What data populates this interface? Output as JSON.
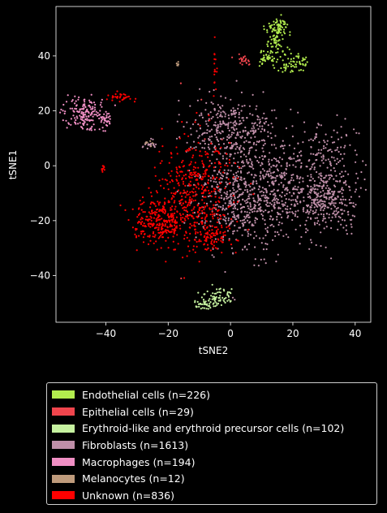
{
  "chart_data": {
    "type": "scatter",
    "title": "",
    "xlabel": "tSNE2",
    "ylabel": "tSNE1",
    "xlim": [
      -56,
      45
    ],
    "ylim": [
      -57,
      58
    ],
    "xticks": [
      -40,
      -20,
      0,
      20,
      40
    ],
    "yticks": [
      -40,
      -20,
      0,
      20,
      40
    ],
    "x_tick_labels": [
      "−40",
      "−20",
      "0",
      "20",
      "40"
    ],
    "y_tick_labels": [
      "−40",
      "−20",
      "0",
      "20",
      "40"
    ],
    "grid": false,
    "legend_position": "below",
    "series": [
      {
        "name": "Endothelial cells (n=226)",
        "color": "#b2ec4e",
        "clusters": [
          {
            "cx": 15,
            "cy": 50,
            "sx": 2,
            "sy": 2,
            "n": 70
          },
          {
            "cx": 15,
            "cy": 43,
            "sx": 1.5,
            "sy": 4,
            "n": 60
          },
          {
            "cx": 12,
            "cy": 39.5,
            "sx": 1.5,
            "sy": 1.5,
            "n": 40
          },
          {
            "cx": 22,
            "cy": 37.5,
            "sx": 1.5,
            "sy": 1.5,
            "n": 40
          },
          {
            "cx": 18,
            "cy": 35.5,
            "sx": 1,
            "sy": 1,
            "n": 16
          }
        ]
      },
      {
        "name": "Epithelial cells (n=29)",
        "color": "#f0454d",
        "clusters": [
          {
            "cx": 4.5,
            "cy": 38,
            "sx": 1,
            "sy": 1,
            "n": 22
          },
          {
            "cx": -6,
            "cy": 4,
            "sx": 5,
            "sy": 15,
            "n": 7
          }
        ]
      },
      {
        "name": "Erythroid-like and erythroid precursor cells (n=102)",
        "color": "#c6f2a0",
        "clusters": [
          {
            "cx": -4,
            "cy": -48,
            "sx": 2,
            "sy": 1.5,
            "n": 60
          },
          {
            "cx": -8.5,
            "cy": -50,
            "sx": 2,
            "sy": 1,
            "n": 42
          }
        ]
      },
      {
        "name": "Fibroblasts (n=1613)",
        "color": "#bf8fa8",
        "clusters": [
          {
            "cx": 12,
            "cy": -8,
            "sx": 10,
            "sy": 9,
            "n": 600
          },
          {
            "cx": 0,
            "cy": 14,
            "sx": 7,
            "sy": 6,
            "n": 330
          },
          {
            "cx": 31,
            "cy": -12,
            "sx": 5,
            "sy": 6,
            "n": 300
          },
          {
            "cx": 3,
            "cy": -16,
            "sx": 6,
            "sy": 8,
            "n": 260
          },
          {
            "cx": 30,
            "cy": 6,
            "sx": 5,
            "sy": 5,
            "n": 100
          },
          {
            "cx": -26,
            "cy": 8,
            "sx": 1,
            "sy": 1,
            "n": 23
          }
        ]
      },
      {
        "name": "Macrophages (n=194)",
        "color": "#f08fc4",
        "clusters": [
          {
            "cx": -47,
            "cy": 19,
            "sx": 3,
            "sy": 3,
            "n": 160
          },
          {
            "cx": -40,
            "cy": 16.5,
            "sx": 1,
            "sy": 1.5,
            "n": 34
          }
        ]
      },
      {
        "name": "Melanocytes (n=12)",
        "color": "#bf9b7c",
        "clusters": [
          {
            "cx": -17,
            "cy": 37,
            "sx": 0.4,
            "sy": 0.4,
            "n": 6
          },
          {
            "cx": -26,
            "cy": 8,
            "sx": 1,
            "sy": 1,
            "n": 6
          }
        ]
      },
      {
        "name": "Unknown (n=836)",
        "color": "#ff0000",
        "clusters": [
          {
            "cx": -11,
            "cy": -10,
            "sx": 6,
            "sy": 10,
            "n": 420
          },
          {
            "cx": -23,
            "cy": -20,
            "sx": 4,
            "sy": 4,
            "n": 280
          },
          {
            "cx": -6,
            "cy": -26,
            "sx": 3,
            "sy": 3,
            "n": 80
          },
          {
            "cx": -35,
            "cy": 25,
            "sx": 2,
            "sy": 1,
            "n": 30
          },
          {
            "cx": -41,
            "cy": -0.5,
            "sx": 0.5,
            "sy": 0.8,
            "n": 10
          },
          {
            "cx": -5,
            "cy": 35,
            "sx": 0.5,
            "sy": 5,
            "n": 16
          }
        ]
      }
    ]
  }
}
